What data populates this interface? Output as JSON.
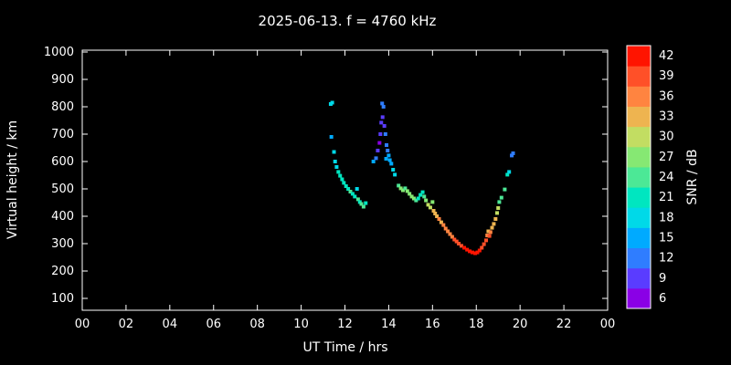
{
  "title": "2025-06-13. f = 4760 kHz",
  "colors": {
    "background": "#000000",
    "foreground": "#ffffff"
  },
  "chart_data": {
    "type": "scatter",
    "title": "2025-06-13. f = 4760 kHz",
    "xlabel": "UT Time / hrs",
    "ylabel": "Virtual height / km",
    "colorbar_label": "SNR / dB",
    "xlim": [
      0,
      24
    ],
    "x_tick_hours": [
      0,
      2,
      4,
      6,
      8,
      10,
      12,
      14,
      16,
      18,
      20,
      22,
      24
    ],
    "x_tick_labels": [
      "00",
      "02",
      "04",
      "06",
      "08",
      "10",
      "12",
      "14",
      "16",
      "18",
      "20",
      "22",
      "00"
    ],
    "y_ticks": [
      100,
      200,
      300,
      400,
      500,
      600,
      700,
      800,
      900,
      1000
    ],
    "ylim": [
      100,
      1000
    ],
    "grid": false,
    "colorbar": {
      "ticks": [
        6,
        9,
        12,
        15,
        18,
        21,
        24,
        27,
        30,
        33,
        36,
        39,
        42
      ],
      "range": [
        4.5,
        43.5
      ],
      "colors": {
        "6": "#8a00e6",
        "9": "#5a3cff",
        "12": "#2f7dff",
        "15": "#00aaff",
        "18": "#00d9e8",
        "21": "#00e6c0",
        "24": "#4ce896",
        "27": "#86e873",
        "30": "#c2dd62",
        "33": "#eeb450",
        "36": "#ff8440",
        "39": "#ff5028",
        "42": "#ff1400"
      }
    },
    "points_format": [
      "ut_hour",
      "virtual_height_km",
      "snr_db"
    ],
    "points": [
      [
        11.35,
        810,
        18
      ],
      [
        11.42,
        815,
        18
      ],
      [
        11.38,
        690,
        15
      ],
      [
        11.5,
        635,
        18
      ],
      [
        11.55,
        600,
        18
      ],
      [
        11.62,
        580,
        18
      ],
      [
        11.7,
        562,
        21
      ],
      [
        11.78,
        548,
        21
      ],
      [
        11.87,
        535,
        21
      ],
      [
        11.95,
        522,
        21
      ],
      [
        12.05,
        510,
        21
      ],
      [
        12.15,
        500,
        21
      ],
      [
        12.25,
        490,
        24
      ],
      [
        12.35,
        482,
        21
      ],
      [
        12.45,
        472,
        21
      ],
      [
        12.55,
        500,
        18
      ],
      [
        12.6,
        462,
        24
      ],
      [
        12.68,
        452,
        21
      ],
      [
        12.75,
        445,
        24
      ],
      [
        12.85,
        435,
        24
      ],
      [
        12.95,
        448,
        21
      ],
      [
        13.3,
        600,
        15
      ],
      [
        13.42,
        612,
        12
      ],
      [
        13.5,
        640,
        9
      ],
      [
        13.58,
        668,
        6
      ],
      [
        13.62,
        700,
        9
      ],
      [
        13.66,
        742,
        9
      ],
      [
        13.7,
        812,
        12
      ],
      [
        13.76,
        800,
        12
      ],
      [
        13.72,
        762,
        9
      ],
      [
        13.8,
        730,
        9
      ],
      [
        13.85,
        700,
        12
      ],
      [
        13.88,
        610,
        15
      ],
      [
        13.9,
        660,
        12
      ],
      [
        13.95,
        640,
        12
      ],
      [
        14.0,
        622,
        15
      ],
      [
        14.05,
        605,
        15
      ],
      [
        14.12,
        592,
        15
      ],
      [
        14.2,
        570,
        18
      ],
      [
        14.28,
        552,
        18
      ],
      [
        14.45,
        512,
        24
      ],
      [
        14.55,
        502,
        27
      ],
      [
        14.65,
        495,
        27
      ],
      [
        14.75,
        502,
        24
      ],
      [
        14.85,
        492,
        27
      ],
      [
        14.95,
        482,
        27
      ],
      [
        15.05,
        472,
        27
      ],
      [
        15.15,
        465,
        27
      ],
      [
        15.25,
        458,
        24
      ],
      [
        15.35,
        465,
        21
      ],
      [
        15.45,
        478,
        21
      ],
      [
        15.55,
        488,
        21
      ],
      [
        15.62,
        472,
        24
      ],
      [
        15.7,
        458,
        27
      ],
      [
        15.8,
        442,
        30
      ],
      [
        15.9,
        432,
        30
      ],
      [
        16.0,
        452,
        27
      ],
      [
        16.05,
        420,
        33
      ],
      [
        16.12,
        410,
        33
      ],
      [
        16.2,
        400,
        33
      ],
      [
        16.3,
        390,
        36
      ],
      [
        16.4,
        378,
        33
      ],
      [
        16.5,
        368,
        36
      ],
      [
        16.6,
        355,
        36
      ],
      [
        16.7,
        345,
        36
      ],
      [
        16.8,
        335,
        36
      ],
      [
        16.9,
        325,
        36
      ],
      [
        17.0,
        315,
        39
      ],
      [
        17.1,
        308,
        39
      ],
      [
        17.2,
        300,
        39
      ],
      [
        17.32,
        292,
        39
      ],
      [
        17.45,
        285,
        42
      ],
      [
        17.58,
        278,
        42
      ],
      [
        17.7,
        272,
        42
      ],
      [
        17.82,
        268,
        42
      ],
      [
        17.95,
        265,
        42
      ],
      [
        18.05,
        268,
        42
      ],
      [
        18.15,
        275,
        42
      ],
      [
        18.25,
        285,
        39
      ],
      [
        18.35,
        298,
        39
      ],
      [
        18.45,
        312,
        39
      ],
      [
        18.5,
        330,
        36
      ],
      [
        18.55,
        345,
        33
      ],
      [
        18.6,
        328,
        39
      ],
      [
        18.65,
        342,
        36
      ],
      [
        18.72,
        358,
        33
      ],
      [
        18.8,
        372,
        33
      ],
      [
        18.88,
        390,
        33
      ],
      [
        18.95,
        412,
        30
      ],
      [
        19.0,
        430,
        30
      ],
      [
        19.05,
        452,
        24
      ],
      [
        19.15,
        468,
        24
      ],
      [
        19.3,
        498,
        24
      ],
      [
        19.42,
        552,
        21
      ],
      [
        19.5,
        562,
        18
      ],
      [
        19.62,
        622,
        12
      ],
      [
        19.68,
        630,
        12
      ]
    ]
  }
}
